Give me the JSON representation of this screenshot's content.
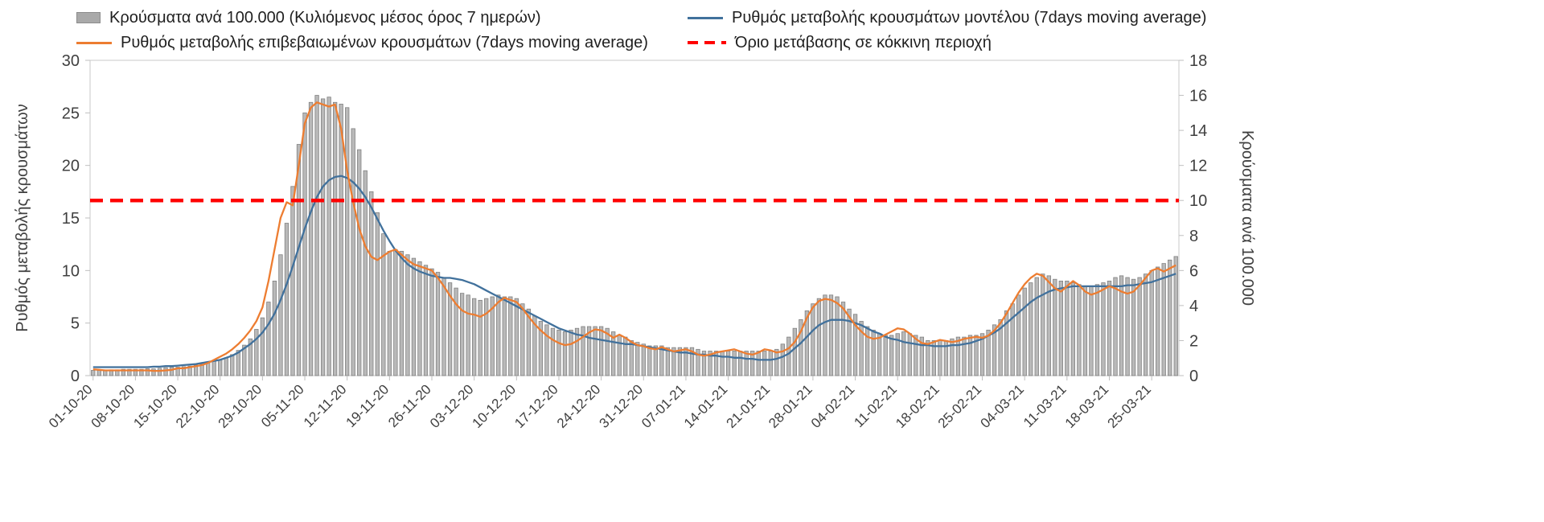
{
  "page": {
    "background": "#ffffff"
  },
  "legend": {
    "bars_label": "Κρούσματα ανά 100.000 (Κυλιόμενος μέσος όρος 7 ημερών)",
    "model_label": "Ρυθμός μεταβολής κρουσμάτων μοντέλου (7days moving average)",
    "confirmed_label": "Ρυθμός μεταβολής επιβεβαιωμένων κρουσμάτων (7days moving average)",
    "threshold_label": "Όριο μετάβασης σε κόκκινη περιοχή"
  },
  "colors": {
    "bars_fill": "#b9b9b9",
    "bars_stroke": "#808080",
    "model_line": "#41719c",
    "confirmed_line": "#ed7d31",
    "threshold": "#ff0000",
    "axis_text": "#404040",
    "plot_border": "#c9c9c9"
  },
  "chart_data": {
    "type": "bar",
    "title": "",
    "x_tick_labels": [
      "01-10-20",
      "08-10-20",
      "15-10-20",
      "22-10-20",
      "29-10-20",
      "05-11-20",
      "12-11-20",
      "19-11-20",
      "26-11-20",
      "03-12-20",
      "10-12-20",
      "17-12-20",
      "24-12-20",
      "31-12-20",
      "07-01-21",
      "14-01-21",
      "21-01-21",
      "28-01-21",
      "04-02-21",
      "11-02-21",
      "18-02-21",
      "25-02-21",
      "04-03-21",
      "11-03-21",
      "18-03-21",
      "25-03-21"
    ],
    "tick_step_days": 7,
    "left_axis": {
      "label": "Ρυθμός μεταβολής κρουσμάτων",
      "range": [
        0,
        30
      ],
      "ticks": [
        0,
        5,
        10,
        15,
        20,
        25,
        30
      ]
    },
    "right_axis": {
      "label": "Κρούσματα ανά 100.000",
      "range": [
        0,
        18
      ],
      "ticks": [
        0,
        2,
        4,
        6,
        8,
        10,
        12,
        14,
        16,
        18
      ]
    },
    "threshold": {
      "label": "Όριο μετάβασης σε κόκκινη περιοχή",
      "axis": "right",
      "value": 10,
      "color": "#ff0000"
    },
    "legend_position": "top",
    "grid": false,
    "series": [
      {
        "name": "Κρούσματα ανά 100.000 (Κυλιόμενος μέσος όρος 7 ημερών)",
        "kind": "bar",
        "axis": "right",
        "color": "#b9b9b9",
        "stroke": "#808080",
        "values": [
          0.3,
          0.3,
          0.3,
          0.33,
          0.33,
          0.36,
          0.36,
          0.36,
          0.36,
          0.39,
          0.39,
          0.42,
          0.45,
          0.48,
          0.48,
          0.51,
          0.54,
          0.6,
          0.66,
          0.75,
          0.84,
          0.9,
          1.02,
          1.2,
          1.44,
          1.74,
          2.1,
          2.64,
          3.3,
          4.2,
          5.4,
          6.9,
          8.7,
          10.8,
          13.2,
          15.0,
          15.6,
          16.0,
          15.8,
          15.9,
          15.6,
          15.5,
          15.3,
          14.1,
          12.9,
          11.7,
          10.5,
          9.3,
          8.1,
          7.1,
          7.2,
          7.1,
          6.9,
          6.7,
          6.5,
          6.3,
          6.1,
          5.9,
          5.6,
          5.3,
          5.0,
          4.7,
          4.6,
          4.4,
          4.3,
          4.4,
          4.5,
          4.6,
          4.5,
          4.5,
          4.4,
          4.1,
          3.8,
          3.4,
          3.1,
          2.9,
          2.7,
          2.6,
          2.5,
          2.6,
          2.7,
          2.8,
          2.8,
          2.8,
          2.8,
          2.7,
          2.5,
          2.3,
          2.2,
          2.0,
          1.9,
          1.8,
          1.7,
          1.7,
          1.7,
          1.6,
          1.6,
          1.6,
          1.6,
          1.6,
          1.5,
          1.4,
          1.4,
          1.4,
          1.4,
          1.4,
          1.4,
          1.4,
          1.4,
          1.4,
          1.4,
          1.4,
          1.4,
          1.5,
          1.8,
          2.2,
          2.7,
          3.2,
          3.7,
          4.1,
          4.4,
          4.6,
          4.6,
          4.5,
          4.2,
          3.8,
          3.5,
          3.1,
          2.8,
          2.6,
          2.4,
          2.3,
          2.3,
          2.4,
          2.5,
          2.4,
          2.3,
          2.2,
          2.0,
          2.0,
          2.0,
          2.0,
          2.1,
          2.2,
          2.2,
          2.3,
          2.3,
          2.4,
          2.6,
          2.9,
          3.2,
          3.7,
          4.1,
          4.6,
          5.0,
          5.3,
          5.6,
          5.8,
          5.7,
          5.5,
          5.4,
          5.4,
          5.3,
          5.2,
          5.1,
          5.1,
          5.2,
          5.3,
          5.4,
          5.6,
          5.7,
          5.6,
          5.5,
          5.6,
          5.8,
          6.0,
          6.2,
          6.4,
          6.6,
          6.8
        ]
      },
      {
        "name": "Ρυθμός μεταβολής κρουσμάτων μοντέλου (7days moving average)",
        "kind": "line",
        "axis": "left",
        "color": "#41719c",
        "values": [
          0.8,
          0.8,
          0.8,
          0.8,
          0.8,
          0.8,
          0.8,
          0.8,
          0.8,
          0.8,
          0.85,
          0.85,
          0.9,
          0.9,
          0.95,
          1.0,
          1.05,
          1.1,
          1.2,
          1.3,
          1.4,
          1.5,
          1.7,
          1.9,
          2.2,
          2.6,
          3.0,
          3.5,
          4.1,
          4.9,
          5.9,
          7.2,
          8.7,
          10.4,
          12.2,
          14.0,
          15.6,
          17.0,
          18.0,
          18.6,
          18.9,
          19.0,
          18.8,
          18.4,
          17.8,
          17.0,
          16.0,
          14.9,
          13.8,
          12.8,
          11.9,
          11.2,
          10.6,
          10.2,
          9.9,
          9.7,
          9.5,
          9.4,
          9.3,
          9.3,
          9.2,
          9.1,
          8.9,
          8.7,
          8.4,
          8.1,
          7.8,
          7.5,
          7.2,
          6.9,
          6.6,
          6.3,
          6.0,
          5.7,
          5.4,
          5.1,
          4.8,
          4.5,
          4.3,
          4.1,
          3.9,
          3.8,
          3.6,
          3.5,
          3.4,
          3.3,
          3.2,
          3.1,
          3.0,
          3.0,
          2.9,
          2.8,
          2.7,
          2.6,
          2.5,
          2.4,
          2.3,
          2.2,
          2.2,
          2.1,
          2.0,
          2.0,
          1.9,
          1.9,
          1.8,
          1.8,
          1.7,
          1.7,
          1.6,
          1.6,
          1.5,
          1.5,
          1.5,
          1.6,
          1.8,
          2.1,
          2.6,
          3.1,
          3.7,
          4.3,
          4.8,
          5.1,
          5.3,
          5.3,
          5.3,
          5.2,
          5.0,
          4.8,
          4.5,
          4.2,
          4.0,
          3.7,
          3.5,
          3.4,
          3.2,
          3.1,
          3.0,
          2.9,
          2.9,
          2.8,
          2.8,
          2.8,
          2.9,
          2.9,
          3.0,
          3.1,
          3.3,
          3.5,
          3.8,
          4.1,
          4.5,
          5.0,
          5.5,
          6.0,
          6.5,
          7.0,
          7.4,
          7.7,
          8.0,
          8.2,
          8.3,
          8.4,
          8.5,
          8.5,
          8.5,
          8.5,
          8.5,
          8.5,
          8.5,
          8.5,
          8.5,
          8.6,
          8.6,
          8.7,
          8.8,
          8.9,
          9.1,
          9.3,
          9.5,
          9.7
        ]
      },
      {
        "name": "Ρυθμός μεταβολής επιβεβαιωμένων κρουσμάτων (7days moving average)",
        "kind": "line",
        "axis": "left",
        "color": "#ed7d31",
        "values": [
          0.6,
          0.55,
          0.5,
          0.5,
          0.5,
          0.5,
          0.5,
          0.5,
          0.5,
          0.5,
          0.45,
          0.45,
          0.5,
          0.55,
          0.7,
          0.7,
          0.8,
          0.9,
          1.0,
          1.2,
          1.5,
          1.8,
          2.1,
          2.5,
          3.0,
          3.6,
          4.3,
          5.2,
          6.5,
          9.0,
          12.0,
          15.0,
          16.5,
          16.2,
          20.0,
          24.0,
          25.5,
          26.0,
          25.8,
          25.6,
          25.8,
          23.5,
          19.5,
          16.5,
          14.0,
          12.3,
          11.3,
          11.0,
          11.4,
          11.8,
          12.0,
          11.5,
          11.0,
          10.6,
          10.4,
          10.2,
          10.0,
          9.3,
          8.5,
          7.6,
          6.8,
          6.2,
          5.9,
          5.8,
          5.6,
          5.9,
          6.4,
          7.0,
          7.4,
          7.2,
          7.0,
          6.4,
          5.6,
          4.9,
          4.3,
          3.8,
          3.4,
          3.1,
          2.9,
          3.0,
          3.3,
          3.7,
          4.1,
          4.4,
          4.3,
          4.0,
          3.6,
          3.9,
          3.6,
          3.2,
          2.9,
          2.8,
          2.6,
          2.5,
          2.7,
          2.5,
          2.3,
          2.4,
          2.5,
          2.3,
          2.0,
          1.9,
          2.0,
          2.2,
          2.3,
          2.4,
          2.5,
          2.3,
          2.1,
          2.0,
          2.2,
          2.5,
          2.4,
          2.2,
          2.3,
          2.6,
          3.2,
          4.2,
          5.5,
          6.5,
          7.1,
          7.3,
          7.2,
          6.9,
          6.4,
          5.6,
          4.8,
          4.2,
          3.7,
          3.5,
          3.6,
          3.9,
          4.2,
          4.5,
          4.4,
          4.0,
          3.5,
          3.1,
          3.0,
          3.2,
          3.4,
          3.3,
          3.2,
          3.3,
          3.5,
          3.6,
          3.7,
          3.6,
          3.8,
          4.3,
          5.0,
          5.9,
          6.9,
          7.9,
          8.7,
          9.3,
          9.7,
          9.5,
          8.9,
          8.3,
          8.0,
          8.5,
          9.0,
          8.6,
          8.0,
          7.7,
          7.9,
          8.2,
          8.5,
          8.3,
          8.0,
          7.8,
          8.0,
          8.6,
          9.3,
          10.0,
          10.2,
          9.9,
          10.2,
          10.5
        ]
      }
    ]
  }
}
